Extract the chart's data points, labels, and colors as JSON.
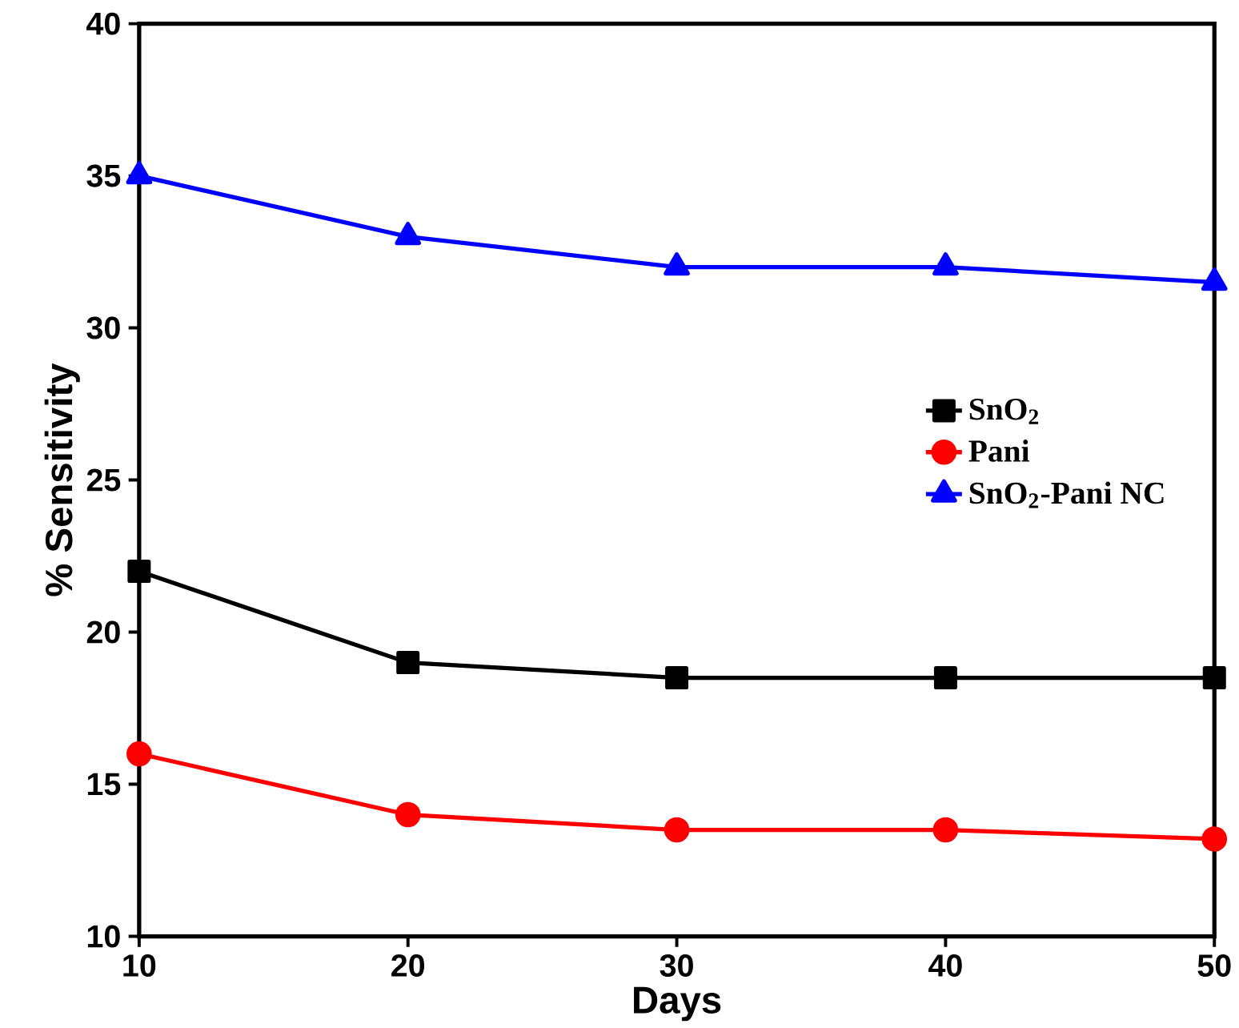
{
  "chart_data": {
    "type": "line",
    "xlabel": "Days",
    "ylabel": "% Sensitivity",
    "x": [
      10,
      20,
      30,
      40,
      50
    ],
    "series": [
      {
        "name": "SnO$_{2}$",
        "color": "#000000",
        "marker": "square",
        "values": [
          22,
          19,
          18.5,
          18.5,
          18.5
        ]
      },
      {
        "name": "Pani",
        "color": "#ff0000",
        "marker": "circle",
        "values": [
          16,
          14,
          13.5,
          13.5,
          13.2
        ]
      },
      {
        "name": "SnO$_{2}$-Pani NC",
        "color": "#0000ff",
        "marker": "triangle",
        "values": [
          35,
          33,
          32,
          32,
          31.5
        ]
      }
    ],
    "xlim": [
      10,
      50
    ],
    "ylim": [
      10,
      40
    ],
    "xticks": [
      10,
      20,
      30,
      40,
      50
    ],
    "yticks": [
      10,
      15,
      20,
      25,
      30,
      35,
      40
    ],
    "legend": "right",
    "grid": false,
    "line_style": "solid"
  }
}
